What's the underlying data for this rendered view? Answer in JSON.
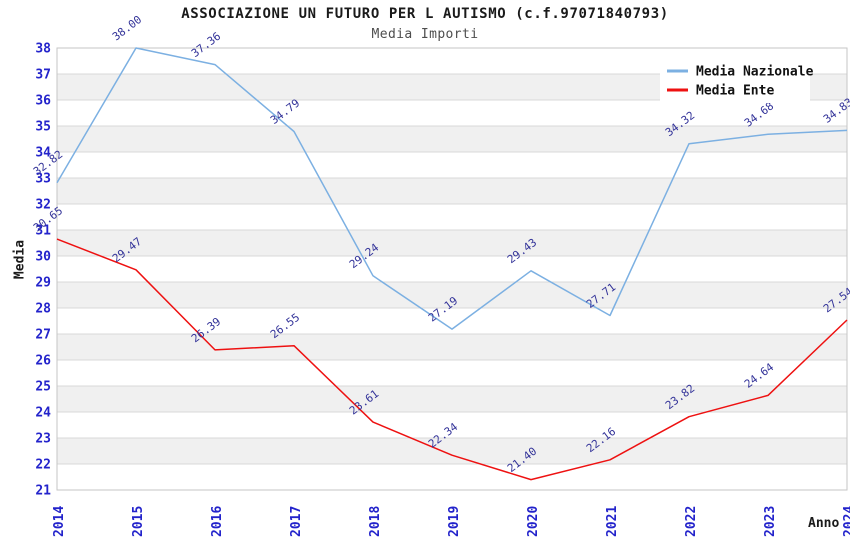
{
  "chart_data": {
    "type": "line",
    "title": "ASSOCIAZIONE UN FUTURO PER L AUTISMO (c.f.97071840793)",
    "subtitle": "Media Importi",
    "xlabel": "Anno",
    "ylabel": "Media",
    "x": [
      "2014",
      "2015",
      "2016",
      "2017",
      "2018",
      "2019",
      "2020",
      "2021",
      "2022",
      "2023",
      "2024"
    ],
    "series": [
      {
        "name": "Media Nazionale",
        "color": "#7cb0e2",
        "values": [
          32.82,
          38.0,
          37.36,
          34.79,
          29.24,
          27.19,
          29.43,
          27.71,
          34.32,
          34.68,
          34.83
        ]
      },
      {
        "name": "Media Ente",
        "color": "#ee1111",
        "values": [
          30.65,
          29.47,
          26.39,
          26.55,
          23.61,
          22.34,
          21.4,
          22.16,
          23.82,
          24.64,
          27.54
        ]
      }
    ],
    "ylim": [
      21,
      38
    ],
    "ytick_step": 1,
    "grid": "horizontal-bands-alternating",
    "legend_position": "top-right",
    "point_labels": "values shown rotated above each point, 2 decimals",
    "theme": {
      "tick_color": "#2323cb",
      "label_color": "#333399",
      "band_gray": "#f0f0f0",
      "band_white": "#ffffff",
      "gridline": "#d8d8d8",
      "border": "#c6c6c6",
      "legend_text": "#111111",
      "legend_bg": "#ffffff",
      "title_color": "#1a1a1a",
      "subtitle_color": "#4d4d4d"
    }
  }
}
